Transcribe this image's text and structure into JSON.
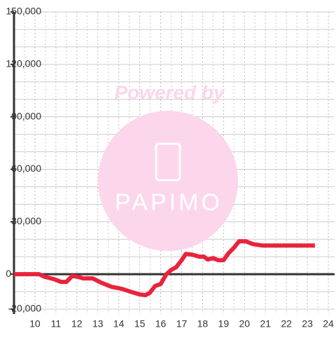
{
  "chart_data": {
    "type": "line",
    "x": [
      9.0,
      10.2,
      10.47,
      10.9,
      11.24,
      11.5,
      11.78,
      12.05,
      12.3,
      12.75,
      13.15,
      13.65,
      14.15,
      14.66,
      15.0,
      15.27,
      15.47,
      15.73,
      16.0,
      16.27,
      16.5,
      16.74,
      17.0,
      17.2,
      17.5,
      17.84,
      18.07,
      18.24,
      18.5,
      18.74,
      19.0,
      19.24,
      19.5,
      19.74,
      20.07,
      20.4,
      20.84,
      21.35,
      23.36
    ],
    "series": [
      {
        "color": "#e8243c",
        "values": [
          0,
          0,
          -1500,
          -2800,
          -4400,
          -4400,
          -1000,
          -1500,
          -2400,
          -2400,
          -4800,
          -7200,
          -8400,
          -10400,
          -11600,
          -12000,
          -10800,
          -6800,
          -5600,
          0,
          2400,
          4000,
          8000,
          11600,
          11200,
          10000,
          10000,
          8400,
          9200,
          8000,
          8000,
          12000,
          15200,
          18800,
          18800,
          17200,
          16400,
          16400,
          16400
        ]
      }
    ],
    "xlim": [
      9,
      24.3
    ],
    "xticks": [
      10,
      11,
      12,
      13,
      14,
      15,
      16,
      17,
      18,
      19,
      20,
      21,
      22,
      23,
      24
    ],
    "x_minor_ticks": [
      9.5,
      10.5,
      11.5,
      12.5,
      13.5,
      14.5,
      15.5,
      16.5,
      17.5,
      18.5,
      19.5,
      20.5,
      21.5,
      22.5,
      23.5
    ],
    "ylim": [
      -20000,
      150000
    ],
    "yticks": [
      {
        "value": -20000,
        "label": "-20,000"
      },
      0,
      {
        "value": 30000,
        "label": "30,000"
      },
      {
        "value": 60000,
        "label": "60,000"
      },
      {
        "value": 90000,
        "label": "90,000"
      },
      {
        "value": 120000,
        "label": "120,000"
      },
      {
        "value": 150000,
        "label": "150,000"
      }
    ],
    "y_minor_ticks": [
      -10000,
      10000,
      20000,
      40000,
      50000,
      70000,
      80000,
      100000,
      110000,
      130000,
      140000
    ],
    "grid": true
  },
  "watermark": {
    "line1": "Powered by",
    "line2": "PAPIMO"
  }
}
